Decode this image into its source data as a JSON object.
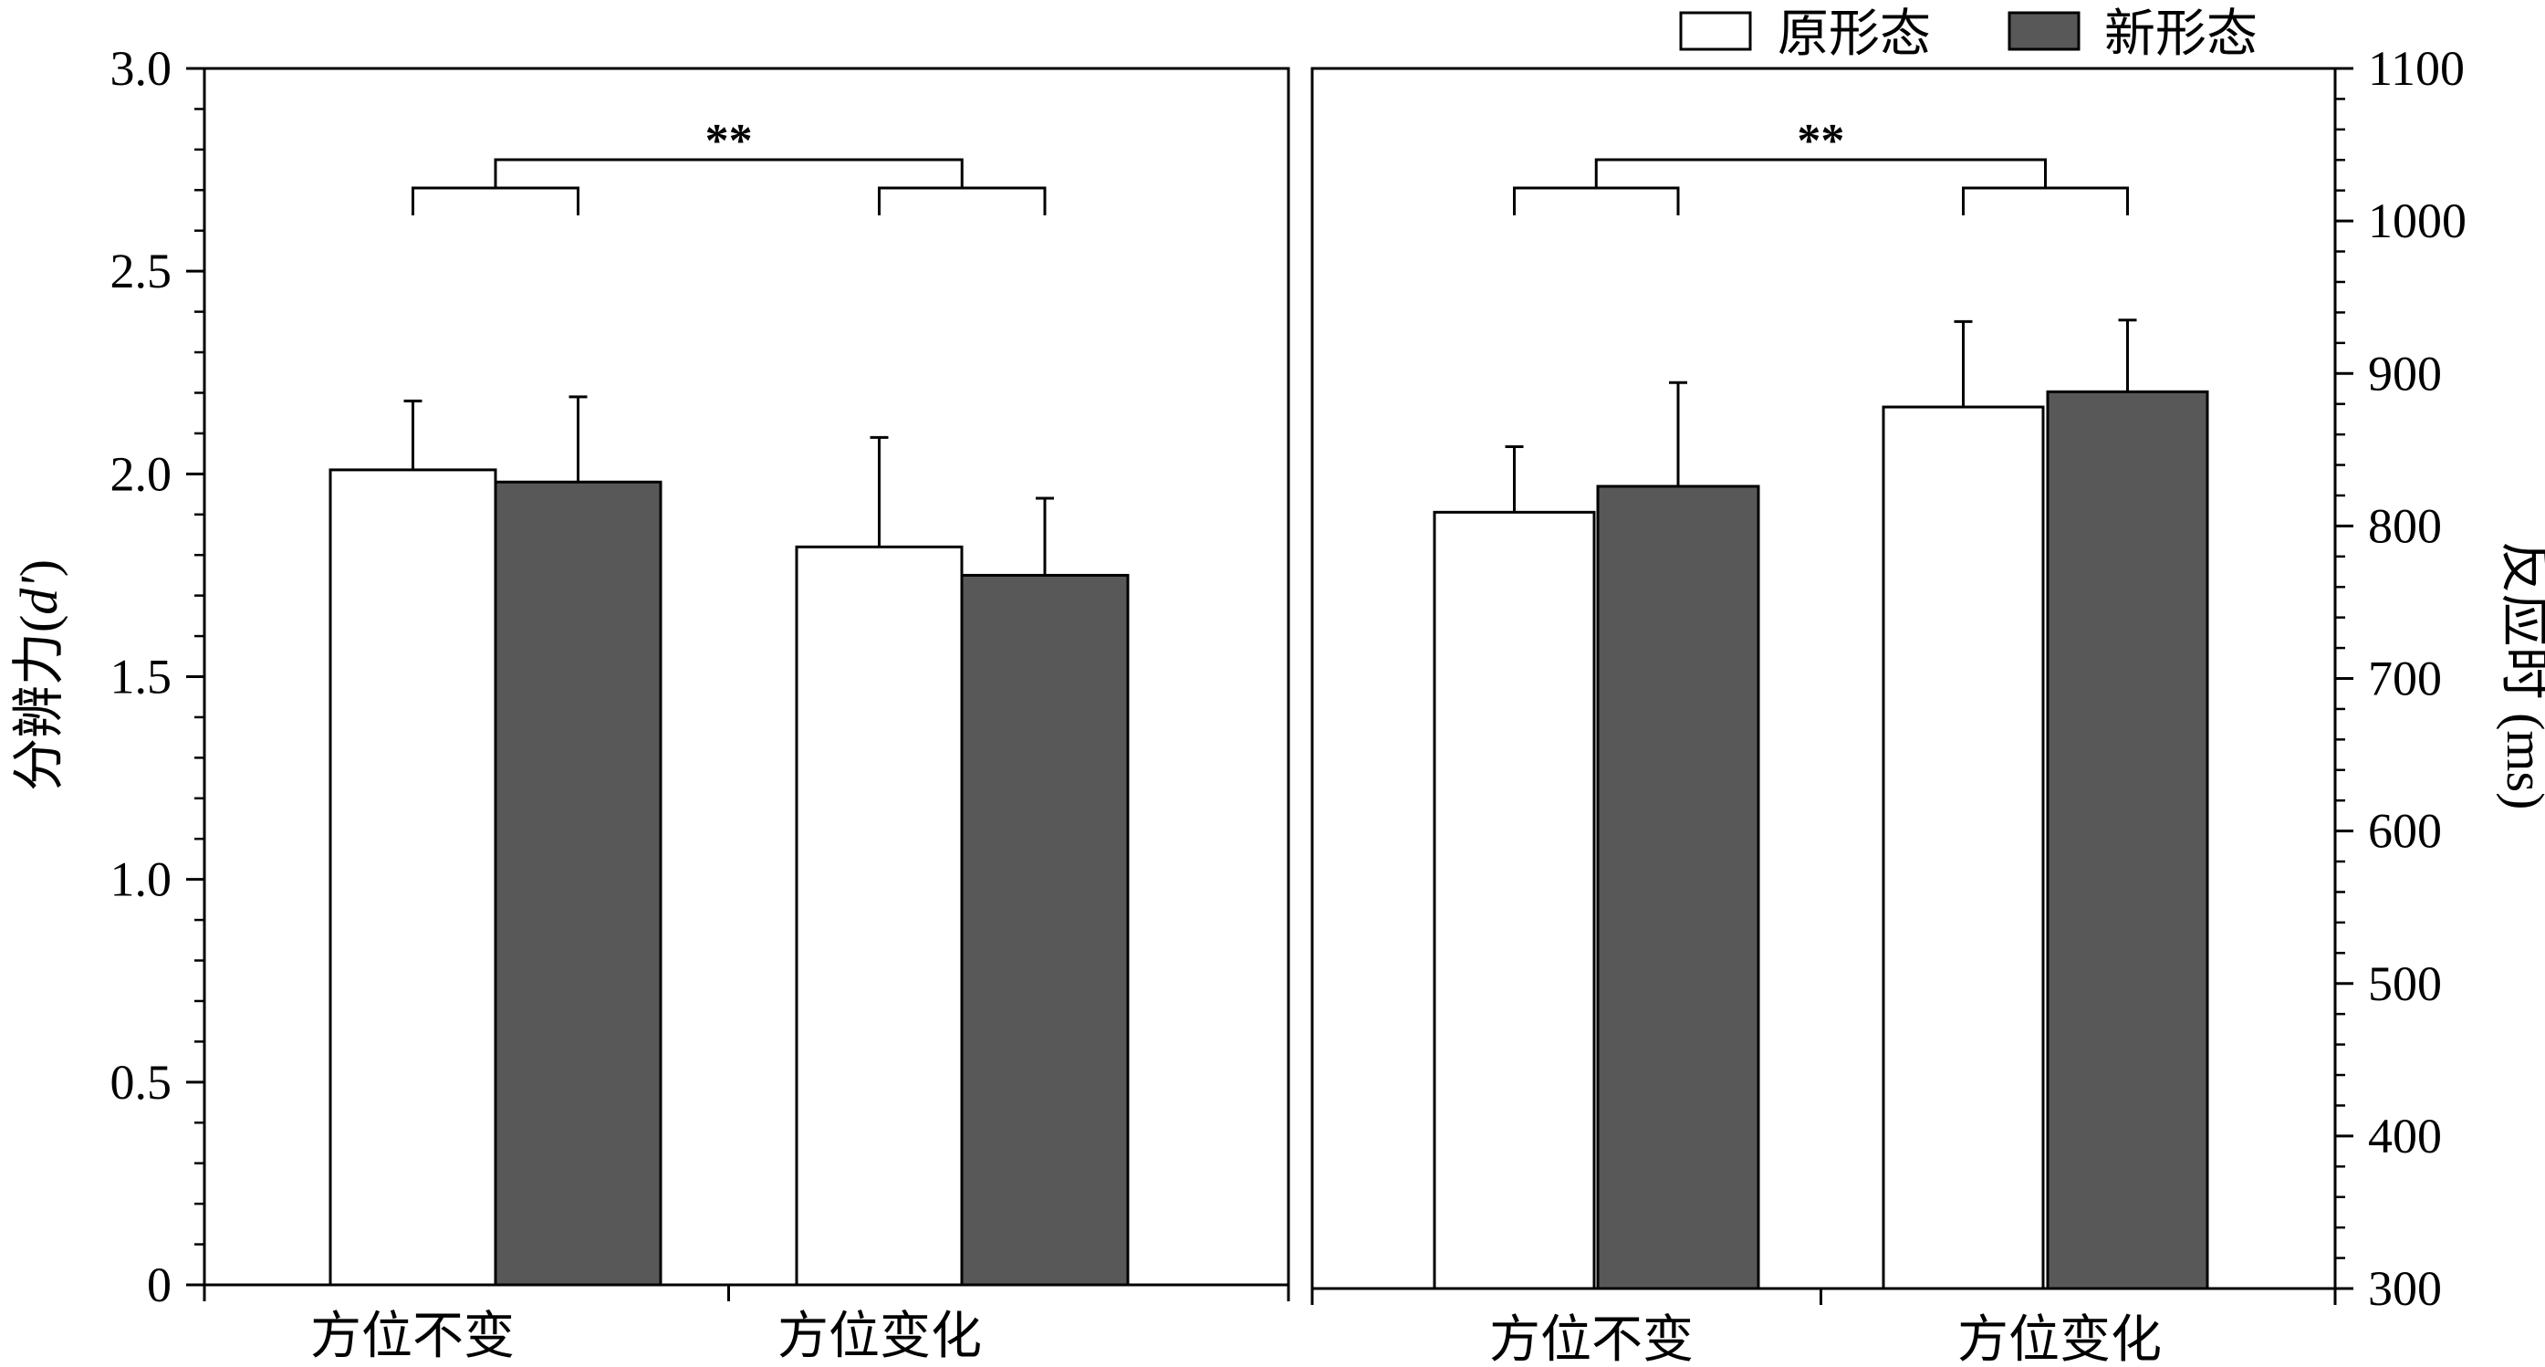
{
  "chart_data": [
    {
      "type": "bar",
      "categories": [
        "方位不变",
        "方位变化"
      ],
      "ylabel_pre": "分辨力(",
      "ylabel_italic": "d'",
      "ylabel_post": ")",
      "ylim": [
        0,
        3.0
      ],
      "yticks": [
        "0",
        "0.5",
        "1.0",
        "1.5",
        "2.0",
        "2.5",
        "3.0"
      ],
      "ytick_values": [
        0,
        0.5,
        1.0,
        1.5,
        2.0,
        2.5,
        3.0
      ],
      "series": [
        {
          "name": "原形态",
          "values": [
            2.01,
            1.82
          ],
          "errors": [
            0.17,
            0.27
          ]
        },
        {
          "name": "新形态",
          "values": [
            1.98,
            1.75
          ],
          "errors": [
            0.21,
            0.19
          ]
        }
      ],
      "annotation": "**",
      "colors": {
        "原形态": "#ffffff",
        "新形态": "#595859"
      }
    },
    {
      "type": "bar",
      "categories": [
        "方位不变",
        "方位变化"
      ],
      "ylabel": "反应时 (ms)",
      "ylim": [
        300,
        1100
      ],
      "yticks": [
        "300",
        "400",
        "500",
        "600",
        "700",
        "800",
        "900",
        "1000",
        "1100"
      ],
      "ytick_values": [
        300,
        400,
        500,
        600,
        700,
        800,
        900,
        1000,
        1100
      ],
      "series": [
        {
          "name": "原形态",
          "values": [
            809,
            878
          ],
          "errors": [
            43,
            56
          ]
        },
        {
          "name": "新形态",
          "values": [
            826,
            888
          ],
          "errors": [
            68,
            47
          ]
        }
      ],
      "annotation": "**",
      "colors": {
        "原形态": "#ffffff",
        "新形态": "#595859"
      }
    }
  ],
  "legend": [
    {
      "label": "原形态",
      "color": "#ffffff"
    },
    {
      "label": "新形态",
      "color": "#595859"
    }
  ]
}
